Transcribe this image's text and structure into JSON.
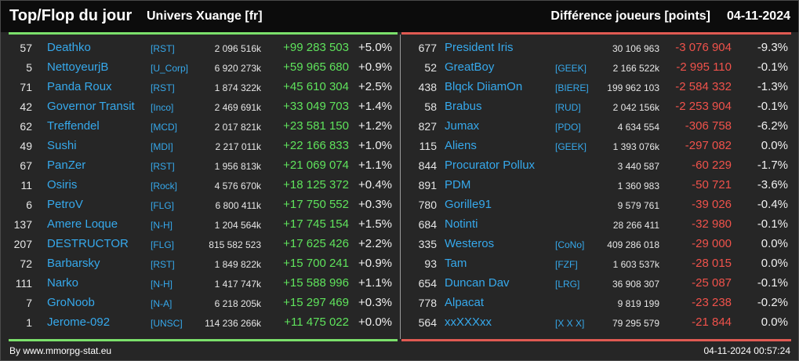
{
  "header": {
    "title": "Top/Flop du jour",
    "universe": "Univers Xuange [fr]",
    "metric": "Différence joueurs [points]",
    "date": "04-11-2024"
  },
  "colors": {
    "positive": "#5fe35c",
    "negative": "#f0524b",
    "link": "#36a9ec"
  },
  "top": [
    {
      "rank": "57",
      "name": "Deathko",
      "alliance": "[RST]",
      "points": "2 096 516k",
      "diff": "+99 283 503",
      "pct": "+5.0%"
    },
    {
      "rank": "5",
      "name": "NettoyeurjB",
      "alliance": "[U_Corp]",
      "points": "6 920 273k",
      "diff": "+59 965 680",
      "pct": "+0.9%"
    },
    {
      "rank": "71",
      "name": "Panda Roux",
      "alliance": "[RST]",
      "points": "1 874 322k",
      "diff": "+45 610 304",
      "pct": "+2.5%"
    },
    {
      "rank": "42",
      "name": "Governor Transit",
      "alliance": "[Inco]",
      "points": "2 469 691k",
      "diff": "+33 049 703",
      "pct": "+1.4%"
    },
    {
      "rank": "62",
      "name": "Treffendel",
      "alliance": "[MCD]",
      "points": "2 017 821k",
      "diff": "+23 581 150",
      "pct": "+1.2%"
    },
    {
      "rank": "49",
      "name": "Sushi",
      "alliance": "[MDI]",
      "points": "2 217 011k",
      "diff": "+22 166 833",
      "pct": "+1.0%"
    },
    {
      "rank": "67",
      "name": "PanZer",
      "alliance": "[RST]",
      "points": "1 956 813k",
      "diff": "+21 069 074",
      "pct": "+1.1%"
    },
    {
      "rank": "11",
      "name": "Osiris",
      "alliance": "[Rock]",
      "points": "4 576 670k",
      "diff": "+18 125 372",
      "pct": "+0.4%"
    },
    {
      "rank": "6",
      "name": "PetroV",
      "alliance": "[FLG]",
      "points": "6 800 411k",
      "diff": "+17 750 552",
      "pct": "+0.3%"
    },
    {
      "rank": "137",
      "name": "Amere Loque",
      "alliance": "[N-H]",
      "points": "1 204 564k",
      "diff": "+17 745 154",
      "pct": "+1.5%"
    },
    {
      "rank": "207",
      "name": "DESTRUCTOR",
      "alliance": "[FLG]",
      "points": "815 582 523",
      "diff": "+17 625 426",
      "pct": "+2.2%"
    },
    {
      "rank": "72",
      "name": "Barbarsky",
      "alliance": "[RST]",
      "points": "1 849 822k",
      "diff": "+15 700 241",
      "pct": "+0.9%"
    },
    {
      "rank": "111",
      "name": "Narko",
      "alliance": "[N-H]",
      "points": "1 417 747k",
      "diff": "+15 588 996",
      "pct": "+1.1%"
    },
    {
      "rank": "7",
      "name": "GroNoob",
      "alliance": "[N-A]",
      "points": "6 218 205k",
      "diff": "+15 297 469",
      "pct": "+0.3%"
    },
    {
      "rank": "1",
      "name": "Jerome-092",
      "alliance": "[UNSC]",
      "points": "114 236 266k",
      "diff": "+11 475 022",
      "pct": "+0.0%"
    }
  ],
  "flop": [
    {
      "rank": "677",
      "name": "President Iris",
      "alliance": "",
      "points": "30 106 963",
      "diff": "-3 076 904",
      "pct": "-9.3%"
    },
    {
      "rank": "52",
      "name": "GreatBoy",
      "alliance": "[GEEK]",
      "points": "2 166 522k",
      "diff": "-2 995 110",
      "pct": "-0.1%"
    },
    {
      "rank": "438",
      "name": "Blqck DiiamOn",
      "alliance": "[BIERE]",
      "points": "199 962 103",
      "diff": "-2 584 332",
      "pct": "-1.3%"
    },
    {
      "rank": "58",
      "name": "Brabus",
      "alliance": "[RUD]",
      "points": "2 042 156k",
      "diff": "-2 253 904",
      "pct": "-0.1%"
    },
    {
      "rank": "827",
      "name": "Jumax",
      "alliance": "[PDO]",
      "points": "4 634 554",
      "diff": "-306 758",
      "pct": "-6.2%"
    },
    {
      "rank": "115",
      "name": "Aliens",
      "alliance": "[GEEK]",
      "points": "1 393 076k",
      "diff": "-297 082",
      "pct": "0.0%"
    },
    {
      "rank": "844",
      "name": "Procurator Pollux",
      "alliance": "",
      "points": "3 440 587",
      "diff": "-60 229",
      "pct": "-1.7%"
    },
    {
      "rank": "891",
      "name": "PDM",
      "alliance": "",
      "points": "1 360 983",
      "diff": "-50 721",
      "pct": "-3.6%"
    },
    {
      "rank": "780",
      "name": "Gorille91",
      "alliance": "",
      "points": "9 579 761",
      "diff": "-39 026",
      "pct": "-0.4%"
    },
    {
      "rank": "684",
      "name": "Notinti",
      "alliance": "",
      "points": "28 266 411",
      "diff": "-32 980",
      "pct": "-0.1%"
    },
    {
      "rank": "335",
      "name": "Westeros",
      "alliance": "[CoNo]",
      "points": "409 286 018",
      "diff": "-29 000",
      "pct": "0.0%"
    },
    {
      "rank": "93",
      "name": "Tam",
      "alliance": "[FZF]",
      "points": "1 603 537k",
      "diff": "-28 015",
      "pct": "0.0%"
    },
    {
      "rank": "654",
      "name": "Duncan Dav",
      "alliance": "[LRG]",
      "points": "36 908 307",
      "diff": "-25 087",
      "pct": "-0.1%"
    },
    {
      "rank": "778",
      "name": "Alpacat",
      "alliance": "",
      "points": "9 819 199",
      "diff": "-23 238",
      "pct": "-0.2%"
    },
    {
      "rank": "564",
      "name": "xxXXXxx",
      "alliance": "[X X X]",
      "points": "79 295 579",
      "diff": "-21 844",
      "pct": "0.0%"
    }
  ],
  "footer": {
    "credit": "By www.mmorpg-stat.eu",
    "timestamp": "04-11-2024 00:57:24"
  }
}
